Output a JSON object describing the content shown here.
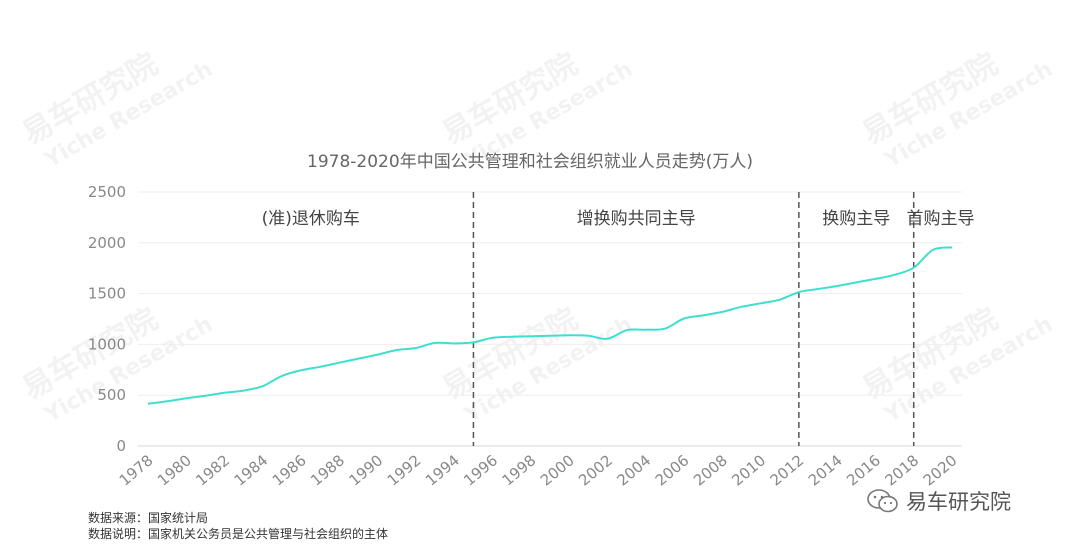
{
  "chart_data": {
    "type": "line",
    "title": "1978-2020年中国公共管理和社会组织就业人员走势(万人)",
    "ylim": [
      0,
      2500
    ],
    "yticks": [
      0,
      500,
      1000,
      1500,
      2000,
      2500
    ],
    "xticks": [
      "1978",
      "1980",
      "1982",
      "1984",
      "1986",
      "1988",
      "1990",
      "1992",
      "1994",
      "1996",
      "1998",
      "2000",
      "2002",
      "2004",
      "2006",
      "2008",
      "2010",
      "2012",
      "2014",
      "2016",
      "2018",
      "2020"
    ],
    "grid": true,
    "line_color": "#3de0cf",
    "series": [
      {
        "x": [
          1978,
          1979,
          1980,
          1981,
          1982,
          1983,
          1984,
          1985,
          1986,
          1987,
          1988,
          1989,
          1990,
          1991,
          1992,
          1993,
          1994,
          1995,
          1996,
          1997,
          1998,
          1999,
          2000,
          2001,
          2002,
          2003,
          2004,
          2005,
          2006,
          2007,
          2008,
          2009,
          2010,
          2011,
          2012,
          2013,
          2014,
          2015,
          2016,
          2017,
          2018,
          2019,
          2020
        ],
        "values": [
          415,
          440,
          470,
          495,
          525,
          545,
          590,
          690,
          745,
          780,
          820,
          860,
          900,
          945,
          965,
          1015,
          1010,
          1020,
          1065,
          1075,
          1080,
          1085,
          1090,
          1085,
          1055,
          1140,
          1145,
          1155,
          1255,
          1285,
          1320,
          1370,
          1405,
          1440,
          1515,
          1545,
          1575,
          1610,
          1645,
          1685,
          1755,
          1930,
          1955
        ]
      }
    ],
    "dividers": [
      1995,
      2012,
      2018
    ],
    "phases": [
      {
        "label": "(准)退休购车",
        "center": 1986.5
      },
      {
        "label": "增换购共同主导",
        "center": 2003.5
      },
      {
        "label": "换购主导",
        "center": 2015
      },
      {
        "label": "首购主导",
        "center": 2019.4
      }
    ]
  },
  "watermark": {
    "cn": "易车研究院",
    "en": "Yiche Research"
  },
  "notes": {
    "source": "数据来源：国家统计局",
    "explanation": "数据说明：国家机关公务员是公共管理与社会组织的主体"
  },
  "brand": {
    "name": "易车研究院",
    "icon": "wechat-icon"
  }
}
